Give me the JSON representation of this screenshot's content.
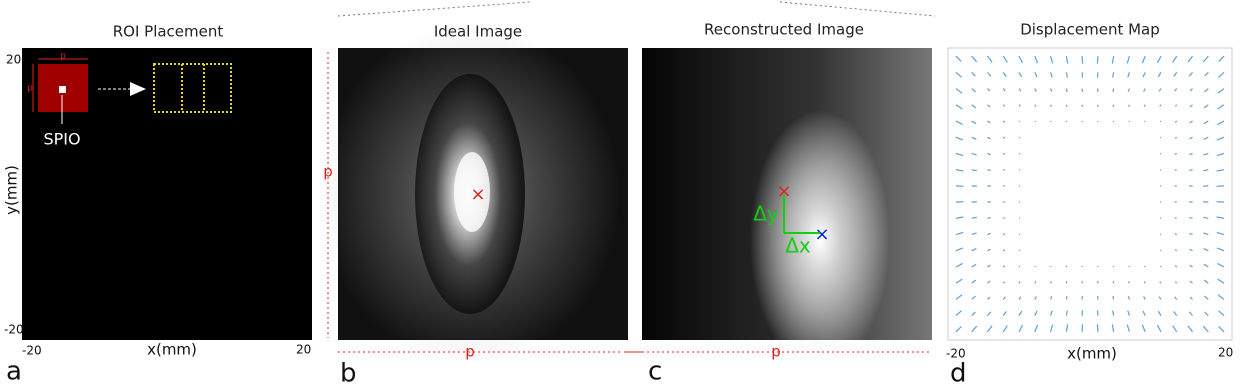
{
  "panels": [
    {
      "title": "ROI Placement",
      "letter": "a",
      "y_label": "y(mm)",
      "x_label": "x(mm)",
      "y_ticks": [
        20,
        -20
      ],
      "x_ticks": [
        -20,
        20
      ],
      "roi_label": "SPIO",
      "roi_size": [
        "p",
        "p"
      ]
    },
    {
      "title": "Ideal Image",
      "letter": "b",
      "size_labels": [
        "p",
        "p"
      ]
    },
    {
      "title": "Reconstructed Image",
      "letter": "c",
      "size_label": "p",
      "dy": "Δy",
      "dx": "Δx"
    },
    {
      "title": "Displacement Map",
      "letter": "d",
      "x_label": "x(mm)",
      "x_ticks": [
        -20,
        20
      ]
    }
  ]
}
